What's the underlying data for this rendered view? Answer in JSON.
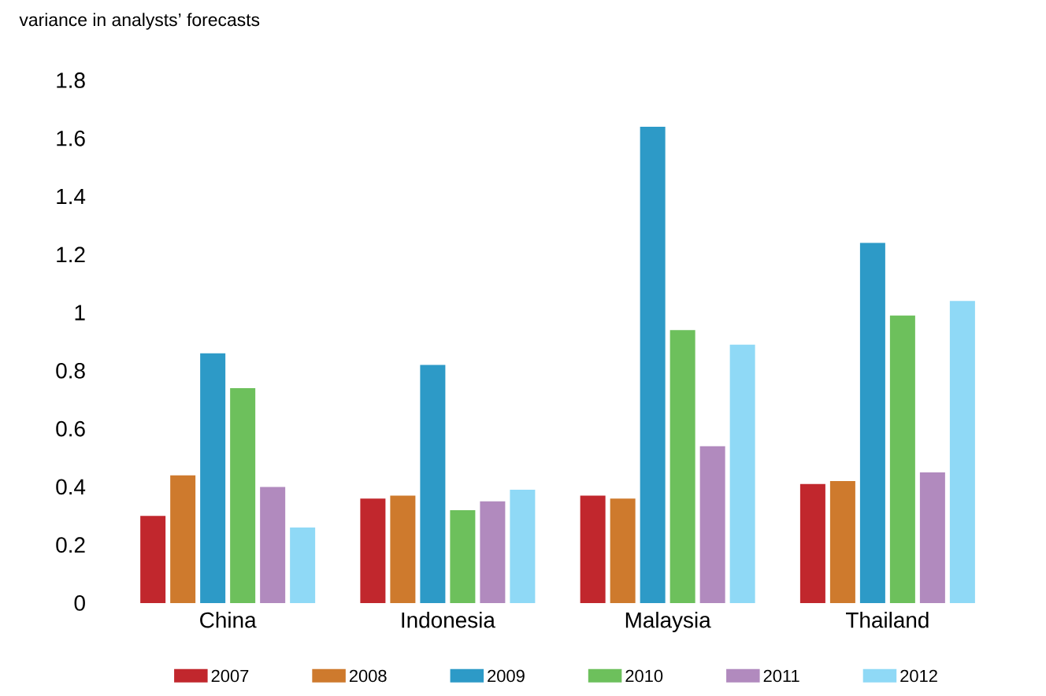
{
  "chart_data": {
    "type": "bar",
    "subtitle": "variance in analysts’ forecasts",
    "categories": [
      "China",
      "Indonesia",
      "Malaysia",
      "Thailand"
    ],
    "series": [
      {
        "name": "2007",
        "color": "#c1272d",
        "values": [
          0.3,
          0.36,
          0.37,
          0.41
        ]
      },
      {
        "name": "2008",
        "color": "#ce7a2d",
        "values": [
          0.44,
          0.37,
          0.36,
          0.42
        ]
      },
      {
        "name": "2009",
        "color": "#2d9ac7",
        "values": [
          0.86,
          0.82,
          1.64,
          1.24
        ]
      },
      {
        "name": "2010",
        "color": "#6dc05c",
        "values": [
          0.74,
          0.32,
          0.94,
          0.99
        ]
      },
      {
        "name": "2011",
        "color": "#b18abe",
        "values": [
          0.4,
          0.35,
          0.54,
          0.45
        ]
      },
      {
        "name": "2012",
        "color": "#8fd9f6",
        "values": [
          0.26,
          0.39,
          0.89,
          1.04
        ]
      }
    ],
    "ylim": [
      0,
      1.8
    ],
    "yticks": [
      0,
      0.2,
      0.4,
      0.6,
      0.8,
      1,
      1.2,
      1.4,
      1.6,
      1.8
    ],
    "grid": false,
    "legend": "bottom"
  }
}
